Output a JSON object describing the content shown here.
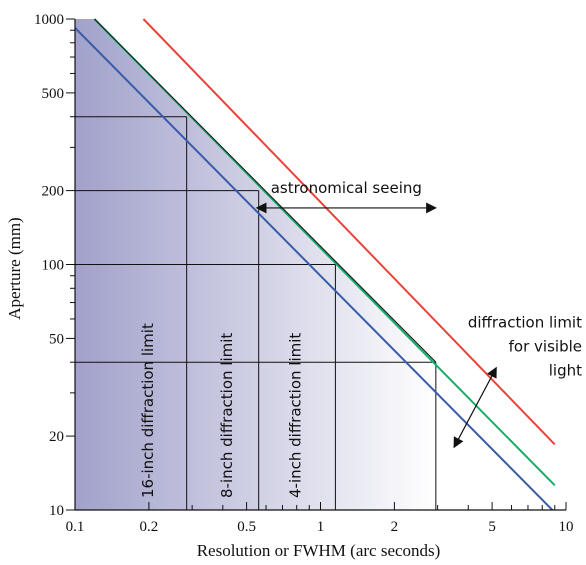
{
  "chart_data": {
    "type": "line",
    "title": "",
    "xlabel": "Resolution or FWHM (arc seconds)",
    "ylabel": "Aperture (mm)",
    "x_scale": "log",
    "y_scale": "log",
    "xlim": [
      0.1,
      10
    ],
    "ylim": [
      10,
      1000
    ],
    "x_tick_labels": [
      {
        "value": 0.1,
        "label": "0.1"
      },
      {
        "value": 0.2,
        "label": "0.2"
      },
      {
        "value": 0.5,
        "label": "0.5"
      },
      {
        "value": 1,
        "label": "1"
      },
      {
        "value": 2,
        "label": "2"
      },
      {
        "value": 5,
        "label": "5"
      },
      {
        "value": 10,
        "label": "10"
      }
    ],
    "x_minor_ticks": [
      0.3,
      0.4,
      0.6,
      0.7,
      0.8,
      0.9,
      3,
      4,
      6,
      7,
      8,
      9
    ],
    "y_tick_labels": [
      {
        "value": 10,
        "label": "10"
      },
      {
        "value": 20,
        "label": "20"
      },
      {
        "value": 50,
        "label": "50"
      },
      {
        "value": 100,
        "label": "100"
      },
      {
        "value": 200,
        "label": "200"
      },
      {
        "value": 500,
        "label": "500"
      },
      {
        "value": 1000,
        "label": "1000"
      }
    ],
    "y_minor_ticks": [
      30,
      40,
      60,
      70,
      80,
      90,
      300,
      400,
      600,
      700,
      800,
      900
    ],
    "grid": false,
    "series": [
      {
        "key": "red",
        "color": "#e8443a",
        "points": [
          [
            0.19,
            1000
          ],
          [
            9.0,
            18.5
          ]
        ]
      },
      {
        "key": "green",
        "color": "#1aab6a",
        "points": [
          [
            0.12,
            1000
          ],
          [
            9.0,
            12.6
          ]
        ]
      },
      {
        "key": "black",
        "color": "#1a1a1a",
        "points": [
          [
            0.12,
            1000
          ],
          [
            2.95,
            40
          ]
        ]
      },
      {
        "key": "blue",
        "color": "#3a5ca8",
        "points": [
          [
            0.1,
            920
          ],
          [
            8.8,
            10
          ]
        ]
      }
    ],
    "reference_lines": [
      {
        "key": "16inch",
        "x": 0.285,
        "y": 400,
        "label": "16-inch diffraction limit"
      },
      {
        "key": "8inch",
        "x": 0.56,
        "y": 200,
        "label": "8-inch diffraction limit"
      },
      {
        "key": "4inch",
        "x": 1.15,
        "y": 100,
        "label": "4-inch diffraction limit"
      },
      {
        "key": "seeing",
        "x": 2.95,
        "y": 40
      }
    ],
    "annotations": {
      "seeing": {
        "text": "astronomical seeing",
        "arrow_from": [
          0.55,
          170
        ],
        "arrow_to": [
          2.95,
          170
        ]
      },
      "visible": {
        "lines": [
          "diffraction limit",
          "for visible",
          "light"
        ],
        "arrow_from": [
          3.5,
          18
        ],
        "arrow_to": [
          5.2,
          38
        ]
      }
    },
    "shading": {
      "from_color": "#9c9cc8",
      "to_color": "#ffffff",
      "under_series": "black"
    }
  }
}
